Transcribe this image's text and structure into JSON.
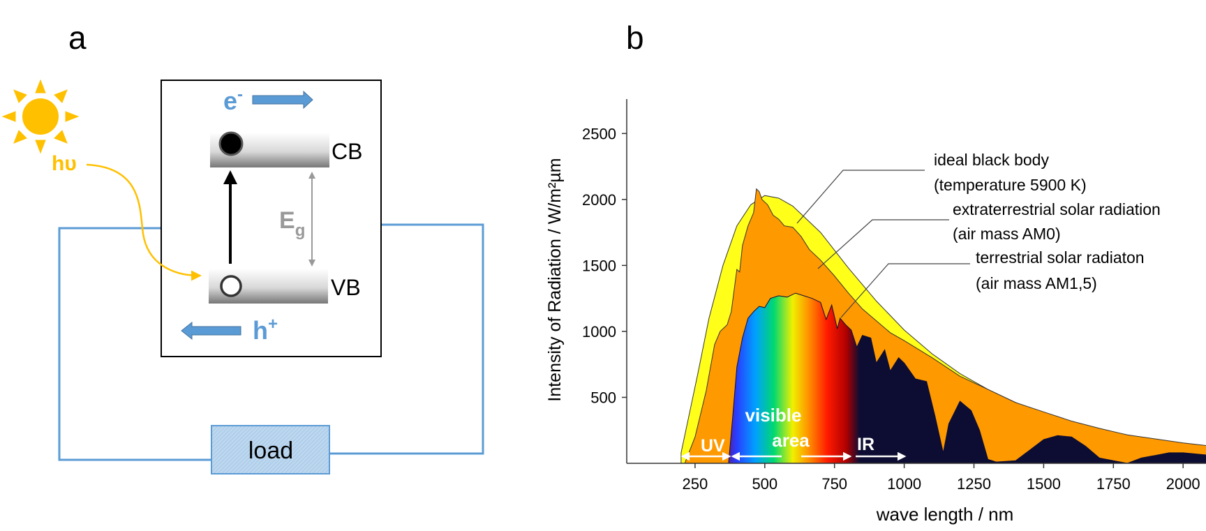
{
  "panel_a": {
    "label": "a",
    "photon": "hυ",
    "electron_base": "e",
    "electron_sup": "-",
    "hole_base": "h",
    "hole_sup": "+",
    "cb": "CB",
    "vb": "VB",
    "gap_base": "E",
    "gap_sub": "g",
    "load": "load",
    "icons": {
      "sun": "sun-icon"
    },
    "colors": {
      "sun": "#FFC000",
      "carrier": "#5B9BD5",
      "gap": "#999999",
      "wire": "#5B9BD5",
      "load_fill": "#BDD7EE"
    }
  },
  "panel_b": {
    "label": "b",
    "annotations": {
      "blackbody_line1": "ideal black body",
      "blackbody_line2": "(temperature 5900 K)",
      "am0_line1": "extraterrestrial solar radiation",
      "am0_line2": "(air mass AM0)",
      "am15_line1": "terrestrial solar radiaton",
      "am15_line2": "(air mass AM1,5)",
      "uv": "UV",
      "visible_line1": "visible",
      "visible_line2": "area",
      "ir": "IR"
    },
    "colors": {
      "blackbody": "#FFFF1A",
      "am0": "#FF9900",
      "am15": "#0D0D33"
    }
  },
  "chart_data": {
    "type": "area",
    "xlabel": "wave length / nm",
    "ylabel": "Intensity of Radiation  /  W/m²µm",
    "xlim": [
      0,
      2200
    ],
    "ylim": [
      0,
      2500
    ],
    "x_ticks": [
      250,
      500,
      750,
      1000,
      1250,
      1500,
      1750,
      2000
    ],
    "y_ticks": [
      500,
      1000,
      1500,
      2000,
      2500
    ],
    "series": [
      {
        "name": "ideal black body",
        "points": [
          [
            200,
            80
          ],
          [
            230,
            380
          ],
          [
            260,
            680
          ],
          [
            300,
            1100
          ],
          [
            350,
            1500
          ],
          [
            400,
            1800
          ],
          [
            450,
            1960
          ],
          [
            500,
            2030
          ],
          [
            550,
            2010
          ],
          [
            600,
            1950
          ],
          [
            700,
            1750
          ],
          [
            800,
            1480
          ],
          [
            900,
            1230
          ],
          [
            1000,
            1010
          ],
          [
            1100,
            830
          ],
          [
            1200,
            680
          ],
          [
            1300,
            560
          ],
          [
            1400,
            460
          ],
          [
            1500,
            380
          ],
          [
            1600,
            315
          ],
          [
            1700,
            260
          ],
          [
            1800,
            215
          ],
          [
            1900,
            180
          ],
          [
            2000,
            150
          ],
          [
            2100,
            128
          ],
          [
            2200,
            110
          ]
        ]
      },
      {
        "name": "extraterrestrial solar radiation",
        "points": [
          [
            215,
            10
          ],
          [
            250,
            200
          ],
          [
            290,
            550
          ],
          [
            320,
            900
          ],
          [
            340,
            1000
          ],
          [
            365,
            1050
          ],
          [
            380,
            1150
          ],
          [
            400,
            1470
          ],
          [
            410,
            1450
          ],
          [
            420,
            1650
          ],
          [
            440,
            1800
          ],
          [
            460,
            1900
          ],
          [
            470,
            2080
          ],
          [
            480,
            2060
          ],
          [
            490,
            2000
          ],
          [
            510,
            1960
          ],
          [
            530,
            1880
          ],
          [
            550,
            1850
          ],
          [
            570,
            1800
          ],
          [
            600,
            1790
          ],
          [
            630,
            1720
          ],
          [
            660,
            1620
          ],
          [
            700,
            1540
          ],
          [
            750,
            1420
          ],
          [
            800,
            1290
          ],
          [
            850,
            1170
          ],
          [
            900,
            1080
          ],
          [
            950,
            990
          ],
          [
            1000,
            930
          ],
          [
            1100,
            800
          ],
          [
            1200,
            660
          ],
          [
            1300,
            560
          ],
          [
            1400,
            460
          ],
          [
            1500,
            390
          ],
          [
            1600,
            320
          ],
          [
            1700,
            265
          ],
          [
            1800,
            215
          ],
          [
            1900,
            185
          ],
          [
            2000,
            155
          ],
          [
            2100,
            130
          ],
          [
            2200,
            110
          ]
        ]
      },
      {
        "name": "terrestrial solar radiaton",
        "points": [
          [
            370,
            0
          ],
          [
            385,
            350
          ],
          [
            400,
            730
          ],
          [
            420,
            950
          ],
          [
            440,
            1100
          ],
          [
            460,
            1150
          ],
          [
            480,
            1190
          ],
          [
            500,
            1180
          ],
          [
            520,
            1250
          ],
          [
            550,
            1270
          ],
          [
            580,
            1260
          ],
          [
            610,
            1290
          ],
          [
            640,
            1270
          ],
          [
            670,
            1250
          ],
          [
            700,
            1220
          ],
          [
            720,
            1090
          ],
          [
            740,
            1200
          ],
          [
            760,
            1020
          ],
          [
            770,
            1100
          ],
          [
            790,
            1050
          ],
          [
            810,
            1010
          ],
          [
            830,
            880
          ],
          [
            850,
            970
          ],
          [
            880,
            950
          ],
          [
            900,
            760
          ],
          [
            930,
            860
          ],
          [
            950,
            700
          ],
          [
            980,
            800
          ],
          [
            1000,
            760
          ],
          [
            1040,
            640
          ],
          [
            1080,
            620
          ],
          [
            1110,
            360
          ],
          [
            1140,
            80
          ],
          [
            1160,
            300
          ],
          [
            1200,
            470
          ],
          [
            1240,
            400
          ],
          [
            1270,
            250
          ],
          [
            1300,
            30
          ],
          [
            1330,
            10
          ],
          [
            1400,
            20
          ],
          [
            1450,
            100
          ],
          [
            1500,
            180
          ],
          [
            1550,
            210
          ],
          [
            1600,
            200
          ],
          [
            1650,
            130
          ],
          [
            1700,
            40
          ],
          [
            1750,
            20
          ],
          [
            1800,
            0
          ],
          [
            1850,
            40
          ],
          [
            1900,
            60
          ],
          [
            1950,
            80
          ],
          [
            2000,
            80
          ],
          [
            2050,
            70
          ],
          [
            2100,
            60
          ],
          [
            2200,
            60
          ]
        ]
      }
    ],
    "visible_range_nm": [
      380,
      780
    ]
  }
}
